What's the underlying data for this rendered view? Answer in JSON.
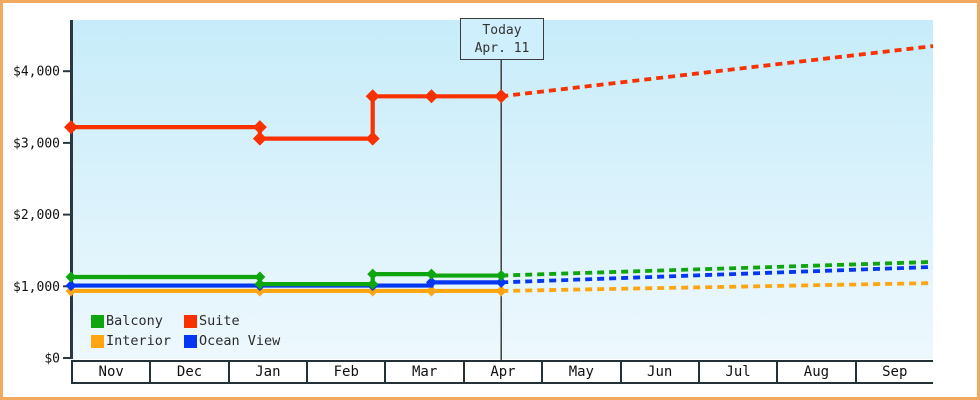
{
  "annotation": {
    "line1": "Today",
    "line2": "Apr. 11"
  },
  "colors": {
    "frame_border": "#F0A95E",
    "axis": "#2B3840",
    "plot_bg_top": "#C7ECFA",
    "plot_bg_bottom": "#EDF8FD",
    "today_line": "#3F3F3F",
    "tick_text": "#111111",
    "balcony": "#0EA50E",
    "suite": "#F93100",
    "interior": "#FFA512",
    "ocean_view": "#0537F0"
  },
  "chart_data": {
    "type": "line",
    "title": "",
    "x_axis": {
      "categories": [
        "Nov",
        "Dec",
        "Jan",
        "Feb",
        "Mar",
        "Apr",
        "May",
        "Jun",
        "Jul",
        "Aug",
        "Sep"
      ],
      "x_unit": "months, Nov 1 = 0 through Oct 1 = 11"
    },
    "y_axis": {
      "ticks": [
        {
          "label": "$0",
          "value": 0
        },
        {
          "label": "$1,000",
          "value": 1000
        },
        {
          "label": "$2,000",
          "value": 2000
        },
        {
          "label": "$3,000",
          "value": 3000
        },
        {
          "label": "$4,000",
          "value": 4000
        }
      ],
      "range": [
        0,
        4714
      ],
      "grid": false
    },
    "today": {
      "label": "Today",
      "date_label": "Apr. 11",
      "x": 5.49
    },
    "legend_position": "inside-bottom-left",
    "draw_order": [
      "Interior",
      "Ocean View",
      "Balcony",
      "Suite"
    ],
    "series": [
      {
        "name": "Balcony",
        "color": "#0EA50E",
        "history": [
          [
            0,
            1130
          ],
          [
            2.41,
            1130
          ],
          [
            2.41,
            1030
          ],
          [
            3.85,
            1030
          ],
          [
            3.85,
            1170
          ],
          [
            4.6,
            1170
          ],
          [
            4.6,
            1150
          ],
          [
            5.49,
            1150
          ]
        ],
        "forecast": [
          [
            5.49,
            1150
          ],
          [
            11,
            1340
          ]
        ],
        "markers": [
          [
            0,
            1130
          ],
          [
            2.41,
            1130
          ],
          [
            2.41,
            1030
          ],
          [
            3.85,
            1030
          ],
          [
            3.85,
            1170
          ],
          [
            4.6,
            1170
          ],
          [
            5.49,
            1150
          ]
        ]
      },
      {
        "name": "Suite",
        "color": "#F93100",
        "history": [
          [
            0,
            3220
          ],
          [
            2.41,
            3220
          ],
          [
            2.41,
            3060
          ],
          [
            3.85,
            3060
          ],
          [
            3.85,
            3650
          ],
          [
            4.6,
            3650
          ],
          [
            5.49,
            3650
          ]
        ],
        "forecast": [
          [
            5.49,
            3650
          ],
          [
            11,
            4350
          ]
        ],
        "markers": [
          [
            0,
            3220
          ],
          [
            2.41,
            3220
          ],
          [
            2.41,
            3060
          ],
          [
            3.85,
            3060
          ],
          [
            3.85,
            3650
          ],
          [
            4.6,
            3650
          ],
          [
            5.49,
            3650
          ]
        ]
      },
      {
        "name": "Interior",
        "color": "#FFA512",
        "history": [
          [
            0,
            935
          ],
          [
            5.49,
            935
          ]
        ],
        "forecast": [
          [
            5.49,
            935
          ],
          [
            11,
            1045
          ]
        ],
        "markers": [
          [
            0,
            935
          ],
          [
            2.41,
            935
          ],
          [
            3.85,
            935
          ],
          [
            4.6,
            935
          ],
          [
            5.49,
            935
          ]
        ]
      },
      {
        "name": "Ocean View",
        "color": "#0537F0",
        "history": [
          [
            0,
            1010
          ],
          [
            4.6,
            1010
          ],
          [
            4.6,
            1055
          ],
          [
            5.49,
            1055
          ]
        ],
        "forecast": [
          [
            5.49,
            1055
          ],
          [
            11,
            1270
          ]
        ],
        "markers": [
          [
            0,
            1010
          ],
          [
            2.41,
            1010
          ],
          [
            3.85,
            1010
          ],
          [
            4.6,
            1055
          ],
          [
            5.49,
            1055
          ]
        ]
      }
    ],
    "legend": [
      {
        "label": "Balcony",
        "color": "#0EA50E"
      },
      {
        "label": "Suite",
        "color": "#F93100"
      },
      {
        "label": "Interior",
        "color": "#FFA512"
      },
      {
        "label": "Ocean View",
        "color": "#0537F0"
      }
    ]
  }
}
